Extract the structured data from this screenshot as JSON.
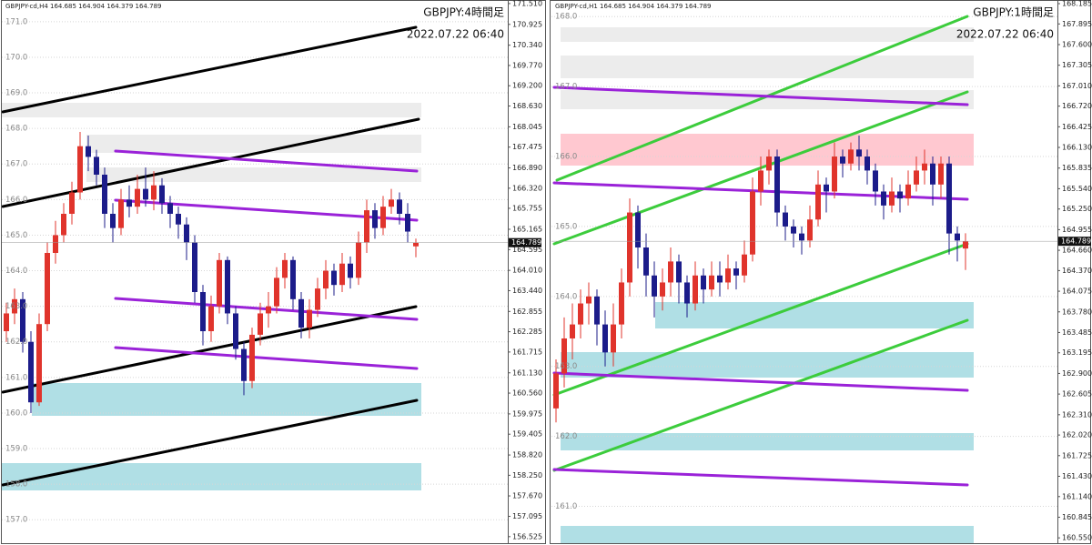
{
  "chart_data": [
    {
      "type": "candlestick",
      "header": "GBPJPY-cd,H4 164.685 164.904 164.379 164.789",
      "title": "GBPJPY:4時間足",
      "subtitle": "2022.07.22 06:40",
      "up_color": "#e0342c",
      "down_color": "#1c1c8a",
      "open": [
        162.3,
        162.8,
        163.2,
        162.0,
        160.3,
        162.5,
        164.5,
        165.0,
        165.6,
        166.2,
        167.5,
        167.2,
        166.7,
        165.6,
        165.2,
        166.0,
        165.8,
        166.3,
        166.0,
        166.4,
        165.9,
        165.6,
        165.3,
        164.8,
        163.4,
        162.3,
        163.0,
        164.3,
        162.8,
        161.8,
        160.9,
        162.2,
        162.8,
        163.0,
        163.8,
        164.3,
        163.2,
        162.4,
        162.9,
        163.5,
        164.0,
        163.6,
        164.2,
        163.8,
        164.8,
        165.7,
        165.2,
        165.8,
        166.0,
        165.6,
        164.685
      ],
      "high": [
        163.1,
        163.5,
        163.4,
        162.3,
        162.8,
        164.8,
        165.4,
        165.9,
        166.5,
        167.9,
        167.8,
        167.4,
        166.9,
        165.9,
        166.3,
        166.4,
        166.7,
        166.9,
        166.8,
        166.6,
        166.1,
        165.8,
        165.5,
        165.0,
        163.6,
        163.3,
        164.5,
        164.4,
        163.0,
        162.0,
        162.4,
        163.1,
        163.4,
        164.1,
        164.5,
        164.4,
        163.4,
        163.2,
        163.8,
        164.3,
        164.2,
        164.5,
        164.4,
        165.1,
        166.0,
        165.9,
        166.1,
        166.3,
        166.2,
        165.9,
        164.904
      ],
      "low": [
        162.0,
        162.5,
        161.7,
        160.0,
        160.2,
        162.3,
        164.2,
        164.8,
        165.3,
        166.0,
        166.8,
        166.4,
        165.2,
        164.8,
        165.0,
        165.5,
        165.6,
        165.8,
        165.7,
        165.6,
        165.2,
        164.9,
        164.3,
        163.1,
        161.9,
        162.0,
        162.8,
        162.5,
        161.5,
        160.5,
        160.7,
        161.9,
        162.4,
        162.8,
        163.5,
        162.9,
        162.1,
        162.1,
        162.7,
        163.2,
        163.3,
        163.4,
        163.5,
        163.6,
        164.5,
        164.9,
        165.0,
        165.6,
        165.3,
        164.8,
        164.379
      ],
      "close": [
        162.8,
        163.2,
        162.0,
        160.3,
        162.5,
        164.5,
        165.0,
        165.6,
        166.2,
        167.5,
        167.2,
        166.7,
        165.6,
        165.2,
        166.0,
        165.8,
        166.3,
        166.0,
        166.4,
        165.9,
        165.6,
        165.3,
        164.8,
        163.4,
        162.3,
        163.0,
        164.3,
        162.8,
        161.8,
        160.9,
        162.2,
        162.8,
        163.0,
        163.8,
        164.3,
        163.2,
        162.4,
        162.9,
        163.5,
        164.0,
        163.6,
        164.2,
        163.8,
        164.8,
        165.7,
        165.2,
        165.8,
        166.0,
        165.6,
        165.1,
        164.789
      ],
      "ylim": [
        156.29,
        171.61
      ],
      "yticks": [
        {
          "value": 171.51,
          "label": "171.510"
        },
        170.925,
        {
          "value": 170.34,
          "label": "170.340"
        },
        {
          "value": 169.77,
          "label": "169.770"
        },
        {
          "value": 169.2,
          "label": "169.200"
        },
        {
          "value": 168.63,
          "label": "168.630"
        },
        168.045,
        167.475,
        {
          "value": 166.89,
          "label": "166.890"
        },
        {
          "value": 166.32,
          "label": "166.320"
        },
        165.755,
        165.165,
        164.595,
        {
          "value": 164.01,
          "label": "164.010"
        },
        {
          "value": 163.44,
          "label": "163.440"
        },
        162.855,
        162.285,
        161.715,
        {
          "value": 161.13,
          "label": "161.130"
        },
        {
          "value": 160.56,
          "label": "160.560"
        },
        159.975,
        159.405,
        {
          "value": 158.82,
          "label": "158.820"
        },
        {
          "value": 158.25,
          "label": "158.250"
        },
        {
          "value": 157.67,
          "label": "157.670"
        },
        157.095,
        156.525
      ],
      "grid_ticks": [
        {
          "value": 171,
          "label": "171.0"
        },
        {
          "value": 170,
          "label": "170.0"
        },
        {
          "value": 169,
          "label": "169.0"
        },
        {
          "value": 168,
          "label": "168.0"
        },
        {
          "value": 167,
          "label": "167.0"
        },
        {
          "value": 166,
          "label": "166.0"
        },
        {
          "value": 165,
          "label": "165.0"
        },
        {
          "value": 164,
          "label": "164.0"
        },
        {
          "value": 163,
          "label": "163.0"
        },
        {
          "value": 162,
          "label": "162.0"
        },
        {
          "value": 161,
          "label": "161.0"
        },
        {
          "value": 160,
          "label": "160.0"
        },
        {
          "value": 159,
          "label": "159.0"
        },
        {
          "value": 158,
          "label": "158.0"
        },
        {
          "value": 157,
          "label": "157.0"
        }
      ]
    },
    {
      "type": "candlestick",
      "header": "GBPJPY-cd,H1 164.685 164.904 164.379 164.789",
      "title": "GBPJPY:1時間足",
      "subtitle": "2022.07.22 06:40",
      "up_color": "#e0342c",
      "down_color": "#1c1c8a",
      "open": [
        162.4,
        162.9,
        163.4,
        163.6,
        163.9,
        164.0,
        163.6,
        163.2,
        163.6,
        164.2,
        165.2,
        164.7,
        164.3,
        164.0,
        164.2,
        164.5,
        164.2,
        163.9,
        164.3,
        164.1,
        164.3,
        164.2,
        164.4,
        164.3,
        164.6,
        165.5,
        165.8,
        166.0,
        165.2,
        165.0,
        164.9,
        164.8,
        165.1,
        165.6,
        165.5,
        166.0,
        165.9,
        166.1,
        166.0,
        165.8,
        165.5,
        165.3,
        165.5,
        165.4,
        165.6,
        165.8,
        165.9,
        165.6,
        165.9,
        164.9,
        164.685
      ],
      "high": [
        163.1,
        163.7,
        163.9,
        164.1,
        164.2,
        164.1,
        163.8,
        163.9,
        164.4,
        165.4,
        165.3,
        164.9,
        164.5,
        164.4,
        164.7,
        164.6,
        164.3,
        164.5,
        164.4,
        164.5,
        164.5,
        164.6,
        164.5,
        164.8,
        165.7,
        166.0,
        166.1,
        166.1,
        165.3,
        165.1,
        165.0,
        165.3,
        165.8,
        165.7,
        166.2,
        166.1,
        166.2,
        166.3,
        166.1,
        165.9,
        165.6,
        165.7,
        165.6,
        165.8,
        166.0,
        166.1,
        166.0,
        166.0,
        166.0,
        165.0,
        164.904
      ],
      "low": [
        162.2,
        162.7,
        163.1,
        163.4,
        163.6,
        163.3,
        163.0,
        163.0,
        163.4,
        164.0,
        164.4,
        164.0,
        163.7,
        163.8,
        164.0,
        163.9,
        163.7,
        163.8,
        163.9,
        164.0,
        164.0,
        164.1,
        164.1,
        164.2,
        164.5,
        165.3,
        165.6,
        165.0,
        164.8,
        164.7,
        164.6,
        164.7,
        165.0,
        165.2,
        165.4,
        165.7,
        165.8,
        165.8,
        165.6,
        165.3,
        165.1,
        165.2,
        165.2,
        165.3,
        165.5,
        165.6,
        165.3,
        165.4,
        164.6,
        164.5,
        164.379
      ],
      "close": [
        162.9,
        163.4,
        163.6,
        163.9,
        164.0,
        163.6,
        163.2,
        163.6,
        164.2,
        165.2,
        164.7,
        164.3,
        164.0,
        164.2,
        164.5,
        164.2,
        163.9,
        164.3,
        164.1,
        164.3,
        164.2,
        164.4,
        164.3,
        164.6,
        165.5,
        165.8,
        166.0,
        165.2,
        165.0,
        164.9,
        164.8,
        165.1,
        165.6,
        165.5,
        166.0,
        165.9,
        166.1,
        166.0,
        165.8,
        165.5,
        165.3,
        165.5,
        165.4,
        165.6,
        165.8,
        165.9,
        165.6,
        165.9,
        164.9,
        164.8,
        164.789
      ],
      "ylim": [
        160.448,
        168.237
      ],
      "yticks": [
        168.185,
        167.895,
        {
          "value": 167.6,
          "label": "167.600"
        },
        167.305,
        {
          "value": 167.01,
          "label": "167.010"
        },
        {
          "value": 166.72,
          "label": "166.720"
        },
        166.425,
        {
          "value": 166.13,
          "label": "166.130"
        },
        165.835,
        {
          "value": 165.54,
          "label": "165.540"
        },
        {
          "value": 165.25,
          "label": "165.250"
        },
        164.955,
        {
          "value": 164.66,
          "label": "164.660"
        },
        {
          "value": 164.37,
          "label": "164.370"
        },
        164.075,
        {
          "value": 163.78,
          "label": "163.780"
        },
        163.485,
        163.195,
        {
          "value": 162.9,
          "label": "162.900"
        },
        162.605,
        {
          "value": 162.31,
          "label": "162.310"
        },
        {
          "value": 162.02,
          "label": "162.020"
        },
        161.725,
        {
          "value": 161.43,
          "label": "161.430"
        },
        {
          "value": 161.14,
          "label": "161.140"
        },
        160.845,
        {
          "value": 160.55,
          "label": "160.550"
        }
      ],
      "grid_ticks": [
        {
          "value": 168,
          "label": "168.0"
        },
        {
          "value": 167,
          "label": "167.0"
        },
        {
          "value": 166,
          "label": "166.0"
        },
        {
          "value": 165,
          "label": "165.0"
        },
        {
          "value": 164,
          "label": "164.0"
        },
        {
          "value": 163,
          "label": "163.0"
        },
        {
          "value": 162,
          "label": "162.0"
        },
        {
          "value": 161,
          "label": "161.0"
        }
      ]
    }
  ]
}
